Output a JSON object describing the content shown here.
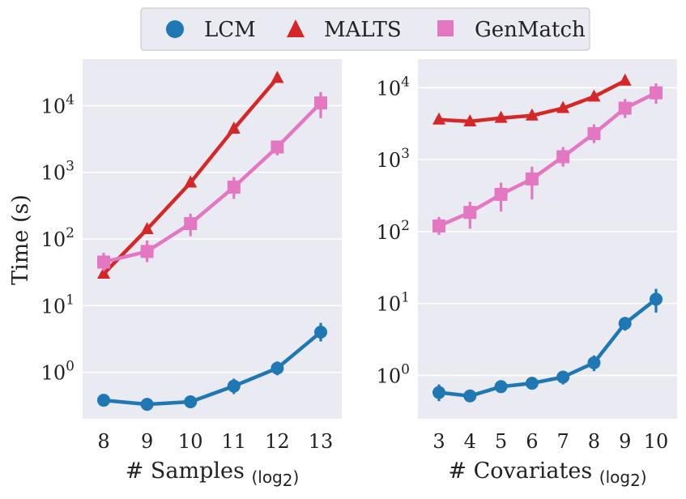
{
  "legend": [
    {
      "name": "LCM",
      "color": "#1f77b4",
      "marker": "circle"
    },
    {
      "name": "MALTS",
      "color": "#d62728",
      "marker": "triangle"
    },
    {
      "name": "GenMatch",
      "color": "#e377c2",
      "marker": "square"
    }
  ],
  "shared_ylabel": "Time (s)",
  "chart_data": [
    {
      "type": "line",
      "xlabel": "# Samples",
      "xlabel_sub": "(log",
      "xlabel_sub2": "2",
      "xlabel_sub3": ")",
      "ylabel": "Time (s)",
      "yscale": "log",
      "ylim": [
        0.2,
        50000
      ],
      "yticks": [
        1,
        10,
        100,
        1000,
        10000
      ],
      "ytick_labels": [
        {
          "base": "10",
          "exp": "0"
        },
        {
          "base": "10",
          "exp": "1"
        },
        {
          "base": "10",
          "exp": "2"
        },
        {
          "base": "10",
          "exp": "3"
        },
        {
          "base": "10",
          "exp": "4"
        }
      ],
      "x": [
        "8",
        "9",
        "10",
        "11",
        "12",
        "13"
      ],
      "grid": true,
      "series": [
        {
          "name": "LCM",
          "color": "#1f77b4",
          "marker": "circle",
          "values": [
            0.38,
            0.33,
            0.36,
            0.62,
            1.15,
            4.0
          ],
          "err_low": [
            0.36,
            0.31,
            0.34,
            0.47,
            0.9,
            2.9
          ],
          "err_high": [
            0.4,
            0.35,
            0.38,
            0.8,
            1.45,
            5.5
          ]
        },
        {
          "name": "MALTS",
          "color": "#d62728",
          "marker": "triangle",
          "values": [
            30,
            140,
            700,
            4500,
            26000,
            null
          ],
          "err_low": [
            28,
            130,
            650,
            4200,
            24000,
            null
          ],
          "err_high": [
            33,
            150,
            750,
            4800,
            28000,
            null
          ]
        },
        {
          "name": "GenMatch",
          "color": "#e377c2",
          "marker": "square",
          "values": [
            45,
            65,
            170,
            600,
            2400,
            11000
          ],
          "err_low": [
            33,
            45,
            110,
            400,
            1800,
            6500
          ],
          "err_high": [
            62,
            95,
            240,
            850,
            3000,
            16000
          ]
        }
      ]
    },
    {
      "type": "line",
      "xlabel": "# Covariates",
      "xlabel_sub": "(log",
      "xlabel_sub2": "2",
      "xlabel_sub3": ")",
      "yscale": "log",
      "ylim": [
        0.25,
        25000
      ],
      "yticks": [
        1,
        10,
        100,
        1000,
        10000
      ],
      "ytick_labels": [
        {
          "base": "10",
          "exp": "0"
        },
        {
          "base": "10",
          "exp": "1"
        },
        {
          "base": "10",
          "exp": "2"
        },
        {
          "base": "10",
          "exp": "3"
        },
        {
          "base": "10",
          "exp": "4"
        }
      ],
      "x": [
        "3",
        "4",
        "5",
        "6",
        "7",
        "8",
        "9",
        "10"
      ],
      "grid": true,
      "series": [
        {
          "name": "LCM",
          "color": "#1f77b4",
          "marker": "circle",
          "values": [
            0.58,
            0.52,
            0.7,
            0.78,
            0.95,
            1.5,
            5.3,
            11.5
          ],
          "err_low": [
            0.44,
            0.47,
            0.6,
            0.68,
            0.75,
            1.15,
            4.2,
            7.5
          ],
          "err_high": [
            0.75,
            0.57,
            0.82,
            0.9,
            1.15,
            1.9,
            6.5,
            16
          ]
        },
        {
          "name": "MALTS",
          "color": "#d62728",
          "marker": "triangle",
          "values": [
            3600,
            3400,
            3800,
            4100,
            5200,
            7500,
            12500,
            null
          ],
          "err_low": [
            3400,
            3200,
            3600,
            3800,
            4800,
            7000,
            11500,
            null
          ],
          "err_high": [
            3800,
            3600,
            4000,
            4400,
            5600,
            8000,
            13500,
            null
          ]
        },
        {
          "name": "GenMatch",
          "color": "#e377c2",
          "marker": "square",
          "values": [
            120,
            185,
            330,
            540,
            1100,
            2300,
            5200,
            8500
          ],
          "err_low": [
            90,
            110,
            190,
            280,
            800,
            1700,
            3800,
            6000
          ],
          "err_high": [
            160,
            260,
            480,
            800,
            1500,
            3100,
            7000,
            11500
          ]
        }
      ]
    }
  ]
}
